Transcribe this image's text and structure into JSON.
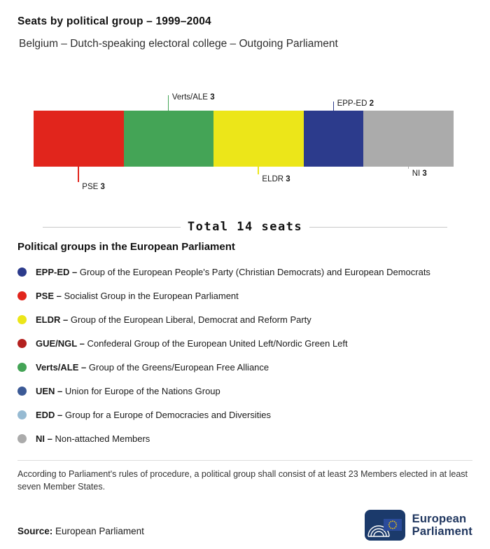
{
  "header": {
    "title": "Seats by political group – 1999–2004",
    "subtitle": "Belgium – Dutch-speaking electoral college – Outgoing Parliament"
  },
  "chart_data": {
    "type": "bar",
    "variant": "horizontal-stacked-seats",
    "title": "Seats by political group – 1999–2004",
    "subtitle": "Belgium – Dutch-speaking electoral college – Outgoing Parliament",
    "unit": "seats",
    "total": 14,
    "total_label": "Total 14 seats",
    "segments": [
      {
        "group": "PSE",
        "seats": 3,
        "color": "#e1251c",
        "side": "below",
        "leader": 22
      },
      {
        "group": "Verts/ALE",
        "seats": 3,
        "color": "#44a456",
        "side": "above",
        "leader": 22
      },
      {
        "group": "ELDR",
        "seats": 3,
        "color": "#ece619",
        "side": "below",
        "leader": 11
      },
      {
        "group": "EPP-ED",
        "seats": 2,
        "color": "#2c3b8c",
        "side": "above",
        "leader": 13
      },
      {
        "group": "NI",
        "seats": 3,
        "color": "#ababab",
        "side": "below",
        "leader": 3
      }
    ]
  },
  "legend": {
    "heading": "Political groups in the European Parliament",
    "items": [
      {
        "abbr": "EPP-ED –",
        "name": "Group of the European People's Party (Christian Democrats) and European Democrats",
        "color": "#2c3b8c"
      },
      {
        "abbr": "PSE –",
        "name": "Socialist Group in the European Parliament",
        "color": "#e1251c"
      },
      {
        "abbr": "ELDR –",
        "name": "Group of the European Liberal, Democrat and Reform Party",
        "color": "#ece619"
      },
      {
        "abbr": "GUE/NGL –",
        "name": "Confederal Group of the European United Left/Nordic Green Left",
        "color": "#b4211f"
      },
      {
        "abbr": "Verts/ALE –",
        "name": "Group of the Greens/European Free Alliance",
        "color": "#44a456"
      },
      {
        "abbr": "UEN –",
        "name": "Union for Europe of the Nations Group",
        "color": "#3c5a96"
      },
      {
        "abbr": "EDD –",
        "name": "Group for a Europe of Democracies and Diversities",
        "color": "#96bad2"
      },
      {
        "abbr": "NI –",
        "name": "Non-attached Members",
        "color": "#ababab"
      }
    ]
  },
  "footnote": "According to Parliament's rules of procedure, a political group shall consist of at least 23 Members elected in at least seven Member States.",
  "source": {
    "label": "Source:",
    "text": "European Parliament"
  },
  "logo": {
    "line1": "European",
    "line2": "Parliament"
  }
}
